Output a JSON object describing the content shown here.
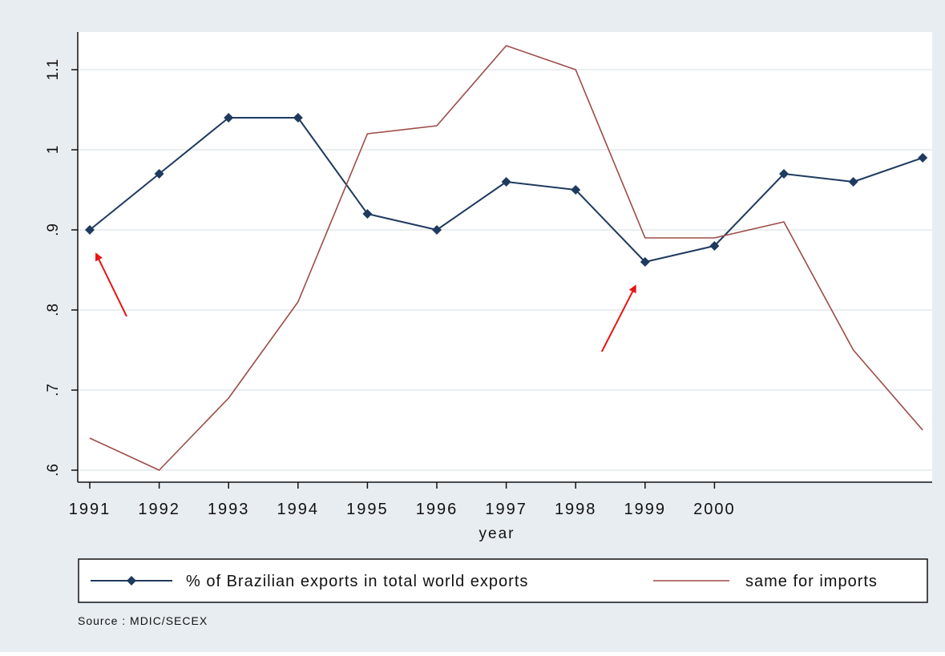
{
  "chart_data": {
    "type": "line",
    "xlabel": "year",
    "ylabel": "",
    "ylim": [
      0.59,
      1.15
    ],
    "y_ticks": [
      ".6",
      ".7",
      ".8",
      ".9",
      "1",
      "1.1"
    ],
    "x_tick_labels": [
      "1991",
      "1992",
      "1993",
      "1994",
      "1995",
      "1996",
      "1997",
      "1998",
      "1999",
      "2000"
    ],
    "x": [
      1991,
      1992,
      1993,
      1994,
      1995,
      1996,
      1997,
      1998,
      1999,
      2000,
      2001,
      2002,
      2003
    ],
    "grid": true,
    "legend_position": "bottom",
    "series": [
      {
        "name": "% of Brazilian exports in total world exports",
        "color": "#1f3a5f",
        "marker": "diamond",
        "values": [
          0.9,
          0.97,
          1.04,
          1.04,
          0.92,
          0.9,
          0.96,
          0.95,
          0.86,
          0.88,
          0.97,
          0.96,
          0.99
        ]
      },
      {
        "name": "same for imports",
        "color": "#9c4b46",
        "marker": "none",
        "values": [
          0.64,
          0.6,
          0.69,
          0.81,
          1.02,
          1.03,
          1.13,
          1.1,
          0.89,
          0.89,
          0.91,
          0.75,
          0.65
        ]
      }
    ],
    "annotations": [
      {
        "type": "arrow",
        "color": "#e81414",
        "target_x": 1991,
        "target_y": 0.9
      },
      {
        "type": "arrow",
        "color": "#e81414",
        "target_x": 1999,
        "target_y": 0.86
      }
    ],
    "source": "Source : MDIC/SECEX"
  },
  "colors": {
    "outer_background": "#e8edf2",
    "plot_background": "#ffffff",
    "grid": "#e4e8ec",
    "axis": "#111111"
  }
}
